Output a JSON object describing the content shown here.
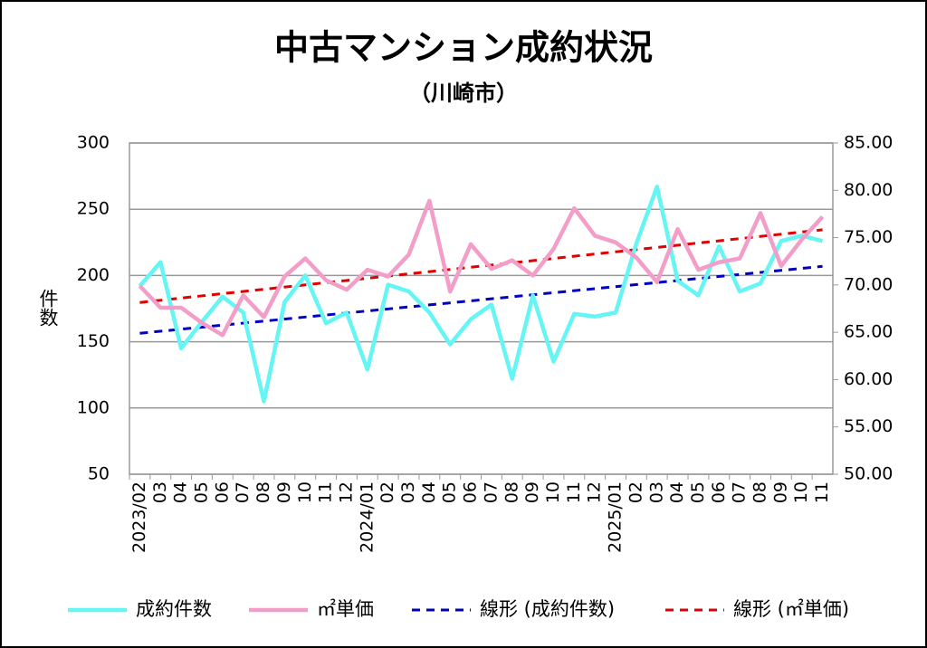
{
  "chart_data": {
    "type": "line",
    "title": "中古マンション成約状況",
    "subtitle": "（川崎市）",
    "y_label": "件数",
    "categories": [
      "2023/02",
      "03",
      "04",
      "05",
      "06",
      "07",
      "08",
      "09",
      "10",
      "11",
      "12",
      "2024/01",
      "02",
      "03",
      "04",
      "05",
      "06",
      "07",
      "08",
      "09",
      "10",
      "11",
      "12",
      "2025/01",
      "02",
      "03",
      "04",
      "05",
      "06",
      "07",
      "08",
      "09",
      "10",
      "11"
    ],
    "series": [
      {
        "name": "成約件数",
        "color": "#66f5f5",
        "axis": "y",
        "values": [
          192,
          210,
          145,
          165,
          184,
          172,
          105,
          180,
          200,
          164,
          172,
          129,
          193,
          188,
          172,
          148,
          167,
          178,
          122,
          185,
          135,
          171,
          169,
          172,
          224,
          267,
          196,
          185,
          222,
          188,
          194,
          226,
          230,
          226
        ]
      },
      {
        "name": "㎡単価",
        "color": "#f29ec8",
        "axis": "y2",
        "values": [
          69.9,
          67.6,
          67.6,
          66.0,
          64.7,
          68.9,
          66.6,
          70.9,
          72.8,
          70.5,
          69.5,
          71.6,
          70.9,
          73.2,
          78.9,
          69.3,
          74.3,
          71.7,
          72.6,
          71.0,
          73.8,
          78.1,
          75.2,
          74.5,
          72.9,
          70.3,
          75.9,
          71.6,
          72.4,
          72.8,
          77.6,
          72.0,
          74.8,
          77.2
        ]
      },
      {
        "name": "線形 (成約件数)",
        "color": "#0000c0",
        "trend_of": 0,
        "dashed": true
      },
      {
        "name": "線形 (㎡単価)",
        "color": "#e00000",
        "trend_of": 1,
        "dashed": true
      }
    ],
    "ylim": [
      50,
      300
    ],
    "yticks": [
      50,
      100,
      150,
      200,
      250,
      300
    ],
    "y2lim": [
      50,
      85
    ],
    "y2ticks": [
      {
        "value": 50,
        "label": "50.00"
      },
      {
        "value": 55,
        "label": "55.00"
      },
      {
        "value": 60,
        "label": "60.00"
      },
      {
        "value": 65,
        "label": "65.00"
      },
      {
        "value": 70,
        "label": "70.00"
      },
      {
        "value": 75,
        "label": "75.00"
      },
      {
        "value": 80,
        "label": "80.00"
      },
      {
        "value": 85,
        "label": "85.00"
      }
    ],
    "grid": true,
    "legend": "bottom"
  }
}
